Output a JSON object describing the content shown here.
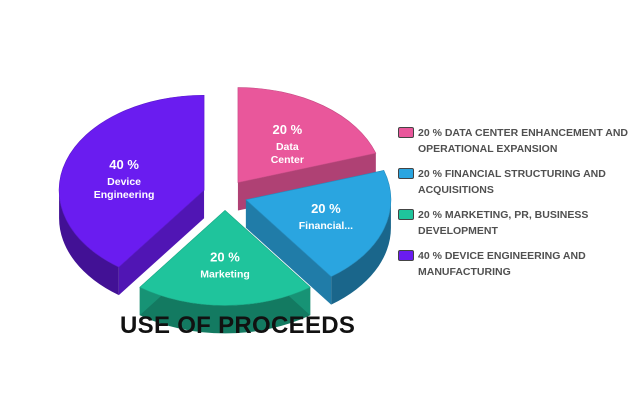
{
  "chart_data": {
    "type": "pie",
    "title": "USE OF PROCEEDS",
    "slices": [
      {
        "label": "Data Center",
        "value": 20,
        "value_label": "20 %",
        "color": "#e9579b",
        "legend": "20 % DATA CENTER ENHANCEMENT AND OPERATIONAL EXPANSION"
      },
      {
        "label": "Financial...",
        "value": 20,
        "value_label": "20 %",
        "color": "#2aa5e0",
        "legend": "20 % FINANCIAL STRUCTURING AND ACQUISITIONS"
      },
      {
        "label": "Marketing",
        "value": 20,
        "value_label": "20 %",
        "color": "#1fc49c",
        "legend": "20 % MARKETING, PR, BUSINESS DEVELOPMENT"
      },
      {
        "label": "Device Engineering",
        "value": 40,
        "value_label": "40 %",
        "color": "#6a1cf0",
        "legend": "40 % DEVICE ENGINEERING AND MANUFACTURING"
      }
    ],
    "legend_position": "right",
    "style": "3d-exploded"
  }
}
